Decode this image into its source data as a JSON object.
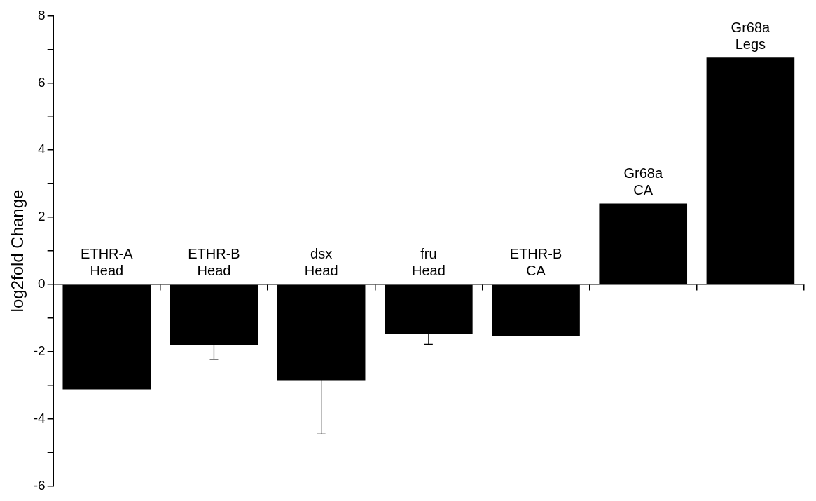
{
  "chart_data": {
    "type": "bar",
    "ylabel": "log2fold Change",
    "categories": [
      "ETHR-A Head",
      "ETHR-B Head",
      "dsx Head",
      "fru Head",
      "ETHR-B CA",
      "Gr68a CA",
      "Gr68a Legs"
    ],
    "values": [
      -3.12,
      -1.8,
      -2.87,
      -1.46,
      -1.53,
      2.41,
      6.75
    ],
    "errors": [
      null,
      0.43,
      1.58,
      0.32,
      null,
      null,
      null
    ],
    "color": "#000000",
    "ylim": [
      -6,
      8
    ],
    "yticks": [
      -6,
      {
        "value": -5,
        "label": null
      },
      -4,
      {
        "value": -3,
        "label": null
      },
      -2,
      {
        "value": -1,
        "label": null
      },
      0,
      {
        "value": 1,
        "label": null
      },
      2,
      {
        "value": 3,
        "label": null
      },
      4,
      {
        "value": 5,
        "label": null
      },
      6,
      {
        "value": 7,
        "label": null
      },
      8
    ],
    "grid": false
  }
}
